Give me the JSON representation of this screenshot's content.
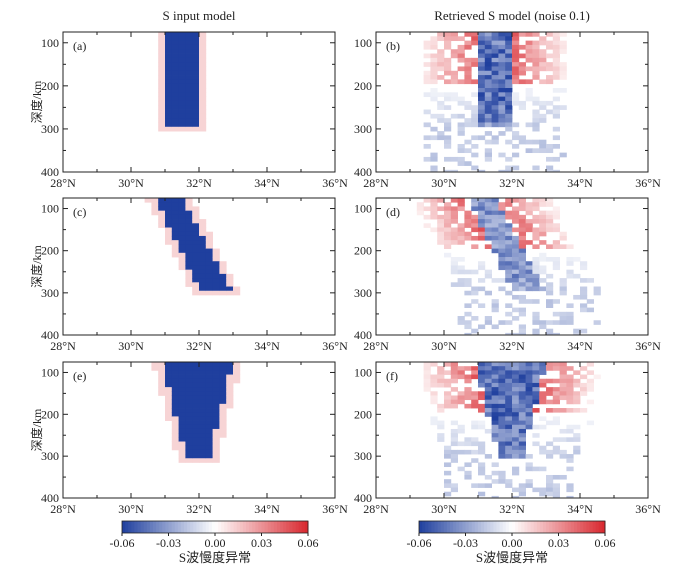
{
  "columns": [
    "S input model",
    "Retrieved S model (noise 0.1)"
  ],
  "colormap": {
    "min_color": "#1f3f9e",
    "mid_color": "#ffffff",
    "max_color": "#d8262d"
  },
  "chart_data": {
    "type": "heatmap",
    "xlabel": "",
    "ylabel": "深度/km",
    "xlim": [
      28,
      36
    ],
    "ylim": [
      400,
      75
    ],
    "xticks": [
      28,
      30,
      32,
      34,
      36
    ],
    "xtick_labels": [
      "28°N",
      "30°N",
      "32°N",
      "34°N",
      "36°N"
    ],
    "yticks": [
      100,
      200,
      300,
      400
    ],
    "ytick_labels": [
      "100",
      "200",
      "300",
      "400"
    ],
    "colorbar": {
      "label": "S波慢度异常",
      "range": [
        -0.06,
        0.06
      ],
      "ticks": [
        -0.06,
        -0.03,
        0.0,
        0.03,
        0.06
      ],
      "tick_labels": [
        "-0.06",
        "-0.03",
        "0.00",
        "0.03",
        "0.06"
      ]
    },
    "panels": [
      {
        "label": "(a)",
        "row": 0,
        "col": 0,
        "kind": "input",
        "shape": "vertical",
        "anomaly": -0.06,
        "top_depth": 75,
        "bottom_depth": 295,
        "lat_left_top": 31.0,
        "lat_right_top": 32.0,
        "lat_left_bottom": 31.0,
        "lat_right_bottom": 32.0
      },
      {
        "label": "(b)",
        "row": 0,
        "col": 1,
        "kind": "retrieved",
        "shape": "vertical",
        "anomaly": -0.06,
        "top_depth": 75,
        "bottom_depth": 295,
        "lat_left_top": 31.0,
        "lat_right_top": 32.0,
        "lat_left_bottom": 31.0,
        "lat_right_bottom": 32.0
      },
      {
        "label": "(c)",
        "row": 1,
        "col": 0,
        "kind": "input",
        "shape": "dipping",
        "anomaly": -0.06,
        "top_depth": 75,
        "bottom_depth": 290,
        "lat_left_top": 30.7,
        "lat_right_top": 31.5,
        "lat_left_bottom": 32.0,
        "lat_right_bottom": 32.9
      },
      {
        "label": "(d)",
        "row": 1,
        "col": 1,
        "kind": "retrieved",
        "shape": "dipping",
        "anomaly": -0.06,
        "top_depth": 75,
        "bottom_depth": 290,
        "lat_left_top": 30.7,
        "lat_right_top": 31.5,
        "lat_left_bottom": 32.0,
        "lat_right_bottom": 32.9
      },
      {
        "label": "(e)",
        "row": 2,
        "col": 0,
        "kind": "input",
        "shape": "wedge",
        "anomaly": -0.06,
        "top_depth": 75,
        "bottom_depth": 300,
        "lat_left_top": 30.9,
        "lat_right_top": 33.0,
        "lat_left_bottom": 31.6,
        "lat_right_bottom": 32.3
      },
      {
        "label": "(f)",
        "row": 2,
        "col": 1,
        "kind": "retrieved",
        "shape": "wedge",
        "anomaly": -0.06,
        "top_depth": 75,
        "bottom_depth": 300,
        "lat_left_top": 30.9,
        "lat_right_top": 33.0,
        "lat_left_bottom": 31.6,
        "lat_right_bottom": 32.3
      }
    ]
  }
}
